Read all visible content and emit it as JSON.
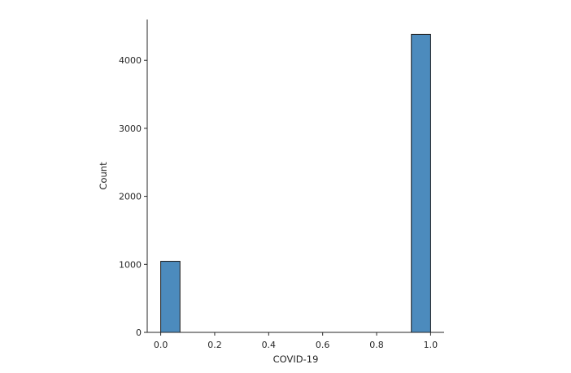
{
  "chart_data": {
    "type": "bar",
    "title": "",
    "xlabel": "COVID-19",
    "ylabel": "Count",
    "bins": [
      {
        "x0": 0.0,
        "x1": 0.0714,
        "count": 1045
      },
      {
        "x0": 0.0714,
        "x1": 0.1429,
        "count": 0
      },
      {
        "x0": 0.1429,
        "x1": 0.2143,
        "count": 0
      },
      {
        "x0": 0.2143,
        "x1": 0.2857,
        "count": 0
      },
      {
        "x0": 0.2857,
        "x1": 0.3571,
        "count": 0
      },
      {
        "x0": 0.3571,
        "x1": 0.4286,
        "count": 0
      },
      {
        "x0": 0.4286,
        "x1": 0.5,
        "count": 0
      },
      {
        "x0": 0.5,
        "x1": 0.5714,
        "count": 0
      },
      {
        "x0": 0.5714,
        "x1": 0.6429,
        "count": 0
      },
      {
        "x0": 0.6429,
        "x1": 0.7143,
        "count": 0
      },
      {
        "x0": 0.7143,
        "x1": 0.7857,
        "count": 0
      },
      {
        "x0": 0.7857,
        "x1": 0.8571,
        "count": 0
      },
      {
        "x0": 0.8571,
        "x1": 0.9286,
        "count": 0
      },
      {
        "x0": 0.9286,
        "x1": 1.0,
        "count": 4380
      }
    ],
    "xlim": [
      -0.05,
      1.05
    ],
    "ylim": [
      0,
      4600
    ],
    "xticks": [
      0.0,
      0.2,
      0.4,
      0.6,
      0.8,
      1.0
    ],
    "xtick_labels": [
      "0.0",
      "0.2",
      "0.4",
      "0.6",
      "0.8",
      "1.0"
    ],
    "yticks": [
      0,
      1000,
      2000,
      3000,
      4000
    ],
    "ytick_labels": [
      "0",
      "1000",
      "2000",
      "3000",
      "4000"
    ],
    "bar_color": "#4c8bbd",
    "edge_color": "#1a1a1a",
    "grid": false,
    "legend": "none"
  }
}
